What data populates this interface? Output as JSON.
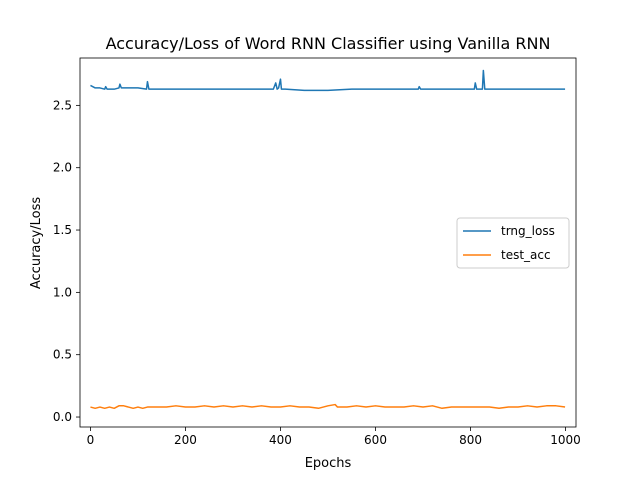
{
  "chart_data": {
    "type": "line",
    "title": "Accuracy/Loss of Word RNN Classifier using Vanilla RNN",
    "xlabel": "Epochs",
    "ylabel": "Accuracy/Loss",
    "xlim": [
      -22,
      1022
    ],
    "ylim": [
      -0.08,
      2.88
    ],
    "x_ticks": [
      0,
      200,
      400,
      600,
      800,
      1000
    ],
    "y_ticks": [
      0.0,
      0.5,
      1.0,
      1.5,
      2.0,
      2.5
    ],
    "x_tick_labels": [
      "0",
      "200",
      "400",
      "600",
      "800",
      "1000"
    ],
    "y_tick_labels": [
      "0.0",
      "0.5",
      "1.0",
      "1.5",
      "2.0",
      "2.5"
    ],
    "grid": false,
    "legend_position": "center-right",
    "series": [
      {
        "name": "trng_loss",
        "color": "#1f77b4",
        "points": [
          [
            0,
            2.66
          ],
          [
            5,
            2.65
          ],
          [
            10,
            2.64
          ],
          [
            20,
            2.64
          ],
          [
            30,
            2.63
          ],
          [
            32,
            2.65
          ],
          [
            35,
            2.63
          ],
          [
            50,
            2.63
          ],
          [
            60,
            2.64
          ],
          [
            62,
            2.67
          ],
          [
            65,
            2.64
          ],
          [
            80,
            2.64
          ],
          [
            100,
            2.64
          ],
          [
            118,
            2.63
          ],
          [
            120,
            2.69
          ],
          [
            123,
            2.63
          ],
          [
            150,
            2.63
          ],
          [
            200,
            2.63
          ],
          [
            250,
            2.63
          ],
          [
            300,
            2.63
          ],
          [
            350,
            2.63
          ],
          [
            385,
            2.63
          ],
          [
            390,
            2.68
          ],
          [
            393,
            2.63
          ],
          [
            396,
            2.64
          ],
          [
            400,
            2.71
          ],
          [
            402,
            2.63
          ],
          [
            410,
            2.63
          ],
          [
            450,
            2.62
          ],
          [
            500,
            2.62
          ],
          [
            550,
            2.63
          ],
          [
            600,
            2.63
          ],
          [
            650,
            2.63
          ],
          [
            690,
            2.63
          ],
          [
            692,
            2.65
          ],
          [
            695,
            2.63
          ],
          [
            700,
            2.63
          ],
          [
            750,
            2.63
          ],
          [
            800,
            2.63
          ],
          [
            808,
            2.63
          ],
          [
            810,
            2.68
          ],
          [
            813,
            2.63
          ],
          [
            820,
            2.63
          ],
          [
            825,
            2.63
          ],
          [
            827,
            2.78
          ],
          [
            830,
            2.63
          ],
          [
            850,
            2.63
          ],
          [
            900,
            2.63
          ],
          [
            950,
            2.63
          ],
          [
            999,
            2.63
          ]
        ]
      },
      {
        "name": "test_acc",
        "color": "#ff7f0e",
        "points": [
          [
            0,
            0.08
          ],
          [
            10,
            0.07
          ],
          [
            20,
            0.08
          ],
          [
            30,
            0.07
          ],
          [
            40,
            0.08
          ],
          [
            50,
            0.07
          ],
          [
            60,
            0.09
          ],
          [
            70,
            0.09
          ],
          [
            80,
            0.08
          ],
          [
            90,
            0.07
          ],
          [
            100,
            0.08
          ],
          [
            110,
            0.07
          ],
          [
            120,
            0.08
          ],
          [
            140,
            0.08
          ],
          [
            160,
            0.08
          ],
          [
            180,
            0.09
          ],
          [
            200,
            0.08
          ],
          [
            220,
            0.08
          ],
          [
            240,
            0.09
          ],
          [
            260,
            0.08
          ],
          [
            280,
            0.09
          ],
          [
            300,
            0.08
          ],
          [
            320,
            0.09
          ],
          [
            340,
            0.08
          ],
          [
            360,
            0.09
          ],
          [
            380,
            0.08
          ],
          [
            400,
            0.08
          ],
          [
            420,
            0.09
          ],
          [
            440,
            0.08
          ],
          [
            460,
            0.08
          ],
          [
            480,
            0.07
          ],
          [
            500,
            0.09
          ],
          [
            515,
            0.1
          ],
          [
            520,
            0.08
          ],
          [
            540,
            0.08
          ],
          [
            560,
            0.09
          ],
          [
            580,
            0.08
          ],
          [
            600,
            0.09
          ],
          [
            620,
            0.08
          ],
          [
            640,
            0.08
          ],
          [
            660,
            0.08
          ],
          [
            680,
            0.09
          ],
          [
            700,
            0.08
          ],
          [
            720,
            0.09
          ],
          [
            740,
            0.07
          ],
          [
            760,
            0.08
          ],
          [
            780,
            0.08
          ],
          [
            800,
            0.08
          ],
          [
            820,
            0.08
          ],
          [
            840,
            0.08
          ],
          [
            860,
            0.07
          ],
          [
            880,
            0.08
          ],
          [
            900,
            0.08
          ],
          [
            920,
            0.09
          ],
          [
            940,
            0.08
          ],
          [
            960,
            0.09
          ],
          [
            980,
            0.09
          ],
          [
            999,
            0.08
          ]
        ]
      }
    ]
  }
}
